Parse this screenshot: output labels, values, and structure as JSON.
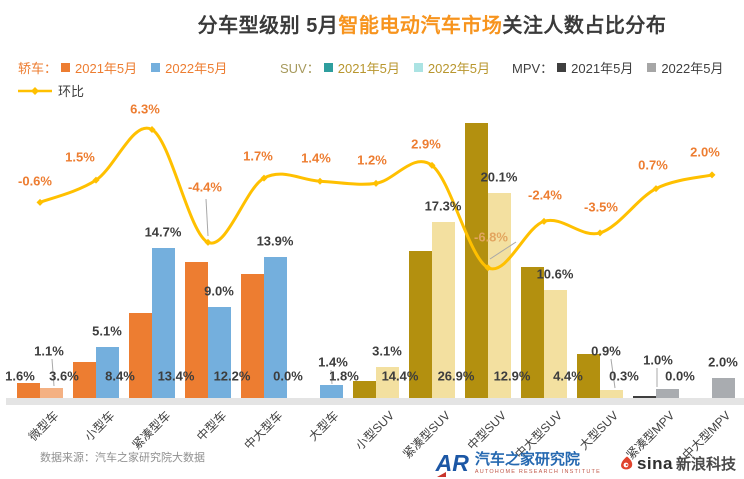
{
  "title": {
    "prefix": "分车型级别 5月",
    "highlight": "智能电动汽车市场",
    "suffix": "关注人数占比分布",
    "highlight_color": "#F7941E",
    "text_color": "#3A3A3A"
  },
  "legend": {
    "groups": [
      {
        "label": "轿车：",
        "label_color": "#ED7D31",
        "x": 18,
        "items": [
          {
            "text": "2021年5月",
            "swatch": "#ED7D31",
            "text_color": "#ED7D31"
          },
          {
            "text": "2022年5月",
            "swatch": "#74AFDD",
            "text_color": "#ED7D31"
          }
        ]
      },
      {
        "label": "SUV：",
        "label_color": "#A6995C",
        "x": 280,
        "items": [
          {
            "text": "2021年5月",
            "swatch": "#2E9E9E",
            "text_color": "#B8962E"
          },
          {
            "text": "2022年5月",
            "swatch": "#ABE3E3",
            "text_color": "#B8962E"
          }
        ]
      },
      {
        "label": "MPV：",
        "label_color": "#3F3F3F",
        "x": 512,
        "items": [
          {
            "text": "2021年5月",
            "swatch": "#3F3F3F",
            "text_color": "#3F3F3F"
          },
          {
            "text": "2022年5月",
            "swatch": "#A6A6A6",
            "text_color": "#3F3F3F"
          }
        ]
      }
    ],
    "line_item": {
      "label": "环比",
      "color": "#FFC000",
      "text_color": "#3F3F3F"
    }
  },
  "chart_data": {
    "type": "bar",
    "subtype": "grouped-bars-with-line-overlay",
    "categories": [
      "微型车",
      "小型车",
      "紧凑型车",
      "中型车",
      "中大型车",
      "大型车",
      "小型SUV",
      "紧凑型SUV",
      "中型SUV",
      "中大型SUV",
      "大型SUV",
      "紧凑型MPV",
      "中大型MPV"
    ],
    "series": [
      {
        "name": "2021年5月",
        "values": [
          1.6,
          3.6,
          8.4,
          13.4,
          12.2,
          0.0,
          1.8,
          14.4,
          26.9,
          12.9,
          4.4,
          0.3,
          0.0
        ],
        "colors": [
          "#ED7D31",
          "#ED7D31",
          "#ED7D31",
          "#ED7D31",
          "#ED7D31",
          "#ED7D31",
          "#B3900F",
          "#B3900F",
          "#B3900F",
          "#B3900F",
          "#B3900F",
          "#3F3F3F",
          "#3F3F3F"
        ]
      },
      {
        "name": "2022年5月",
        "values": [
          1.1,
          5.1,
          14.7,
          9.0,
          13.9,
          1.4,
          3.1,
          17.3,
          20.1,
          10.6,
          0.9,
          1.0,
          2.0
        ],
        "colors": [
          "#F4B183",
          "#74AFDD",
          "#74AFDD",
          "#74AFDD",
          "#74AFDD",
          "#74AFDD",
          "#F3E0A0",
          "#F3E0A0",
          "#F3E0A0",
          "#F3E0A0",
          "#F3E0A0",
          "#A9ACB0",
          "#A9ACB0"
        ]
      }
    ],
    "line_series": {
      "name": "环比",
      "color": "#FFC000",
      "values": [
        -0.6,
        1.5,
        6.3,
        -4.4,
        1.7,
        1.4,
        1.2,
        2.9,
        -6.8,
        -2.4,
        -3.5,
        0.7,
        2.0
      ]
    },
    "value_label_suffix": "%",
    "grid": false,
    "legend_position": "top-left",
    "bar_value_label_color": "#3D3D3D",
    "line_value_label_color": "#ED7D31"
  },
  "footer": {
    "source": "数据来源：汽车之家研究院大数据",
    "autohome_mark": "AR",
    "autohome_name": "汽车之家研究院",
    "autohome_sub": "AUTOHOME RESEARCH INSTITUTE",
    "sina_word": "sina",
    "sina_text": "新浪科技"
  }
}
